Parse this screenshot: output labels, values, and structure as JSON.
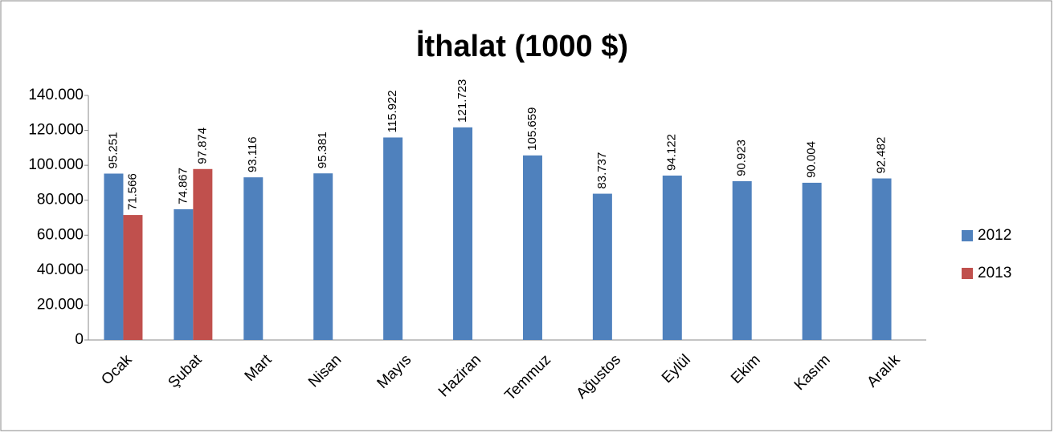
{
  "chart_data": {
    "type": "bar",
    "title": "İthalat (1000 $)",
    "categories": [
      "Ocak",
      "Şubat",
      "Mart",
      "Nisan",
      "Mayıs",
      "Haziran",
      "Temmuz",
      "Ağustos",
      "Eylül",
      "Ekim",
      "Kasım",
      "Aralık"
    ],
    "series": [
      {
        "name": "2012",
        "color": "#4f81bd",
        "values": [
          95251,
          74867,
          93116,
          95381,
          115922,
          121723,
          105659,
          83737,
          94122,
          90923,
          90004,
          92482
        ],
        "value_labels": [
          "95.251",
          "74.867",
          "93.116",
          "95.381",
          "115.922",
          "121.723",
          "105.659",
          "83.737",
          "94.122",
          "90.923",
          "90.004",
          "92.482"
        ]
      },
      {
        "name": "2013",
        "color": "#c0504d",
        "values": [
          71566,
          97874,
          null,
          null,
          null,
          null,
          null,
          null,
          null,
          null,
          null,
          null
        ],
        "value_labels": [
          "71.566",
          "97.874",
          null,
          null,
          null,
          null,
          null,
          null,
          null,
          null,
          null,
          null
        ]
      }
    ],
    "ylim": [
      0,
      140000
    ],
    "yticks": [
      0,
      {
        "value": 20000,
        "label": "20.000"
      },
      {
        "value": 40000,
        "label": "40.000"
      },
      {
        "value": 60000,
        "label": "60.000"
      },
      {
        "value": 80000,
        "label": "80.000"
      },
      {
        "value": 100000,
        "label": "100.000"
      },
      {
        "value": 120000,
        "label": "120.000"
      },
      {
        "value": 140000,
        "label": "140.000"
      }
    ],
    "grid": false,
    "legend": "right"
  }
}
